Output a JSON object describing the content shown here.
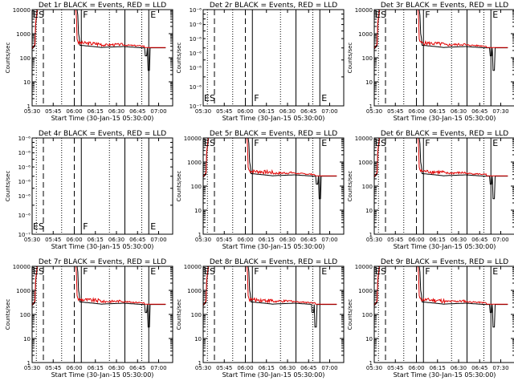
{
  "chart_data": {
    "type": "line",
    "x_tick_labels": [
      "05:30",
      "05:45",
      "06:00",
      "06:15",
      "06:30",
      "06:45",
      "07:00"
    ],
    "x_tick_labels_r": [
      "05:30",
      "05:45",
      "06:00",
      "06:15",
      "06:30",
      "06:45",
      "07:30"
    ],
    "xlabel": "Start Time (30-Jan-15 05:30:00)",
    "ylabel": "Counts/sec",
    "xlim": [
      "05:30",
      "07:10"
    ],
    "yscale": "log",
    "flag_labels": [
      "ES",
      "F",
      "E"
    ],
    "series_colors": {
      "events": "#000000",
      "lld": "#e00000"
    },
    "marker_times": {
      "dotted": [
        "05:33",
        "05:51",
        "06:25",
        "06:48"
      ],
      "dashed": [
        "05:38",
        "06:00"
      ],
      "solid": [
        "06:05",
        "06:36"
      ],
      "solid_late": "06:53"
    },
    "panels": [
      {
        "title": "Det 1r BLACK = Events, RED = LLD",
        "kind": "data",
        "ylim": [
          1,
          10000
        ],
        "dip": "06:53",
        "y_ticks": [
          "1",
          "10",
          "100",
          "1000",
          "10000"
        ]
      },
      {
        "title": "Det 2r BLACK = Events, RED = LLD",
        "kind": "empty",
        "ylim": [
          1e-07,
          1e-06
        ],
        "y_ticks": [
          "10⁻⁷",
          "10⁻⁶"
        ],
        "y_minor_ticks": [
          "10⁻⁶",
          "10⁻⁶",
          "10⁻⁶",
          "10⁻⁶",
          "10⁻⁶"
        ]
      },
      {
        "title": "Det 3r BLACK = Events, RED = LLD",
        "kind": "data",
        "ylim": [
          1,
          10000
        ],
        "dip": "06:55",
        "xr": true,
        "y_ticks": [
          "1",
          "10",
          "100",
          "1000",
          "10000"
        ]
      },
      {
        "title": "Det 4r BLACK = Events, RED = LLD",
        "kind": "empty",
        "ylim": [
          1e-07,
          1e-06
        ],
        "y_ticks": [
          "10⁻⁷",
          "10⁻⁶"
        ],
        "y_minor_ticks": [
          "10⁻⁶",
          "10⁻⁶",
          "10⁻⁶",
          "10⁻⁶",
          "10⁻⁶"
        ]
      },
      {
        "title": "Det 5r BLACK = Events, RED = LLD",
        "kind": "data",
        "ylim": [
          1,
          10000
        ],
        "dip": "06:53",
        "y_ticks": [
          "1",
          "10",
          "100",
          "1000",
          "10000"
        ]
      },
      {
        "title": "Det 6r BLACK = Events, RED = LLD",
        "kind": "data",
        "ylim": [
          1,
          10000
        ],
        "dip": "06:55",
        "y_ticks": [
          "1",
          "10",
          "100",
          "1000",
          "10000"
        ]
      },
      {
        "title": "Det 7r BLACK = Events, RED = LLD",
        "kind": "data",
        "ylim": [
          1,
          10000
        ],
        "dip": "06:53",
        "y_ticks": [
          "1",
          "10",
          "100",
          "1000",
          "10000"
        ]
      },
      {
        "title": "Det 8r BLACK = Events, RED = LLD",
        "kind": "data",
        "ylim": [
          1,
          10000
        ],
        "dip": "06:50",
        "y_ticks": [
          "1",
          "10",
          "100",
          "1000",
          "10000"
        ]
      },
      {
        "title": "Det 9r BLACK = Events, RED = LLD",
        "kind": "data",
        "ylim": [
          1,
          10000
        ],
        "dip": "06:55",
        "xr": true,
        "y_ticks": [
          "1",
          "10",
          "100",
          "1000",
          "10000"
        ]
      }
    ]
  }
}
